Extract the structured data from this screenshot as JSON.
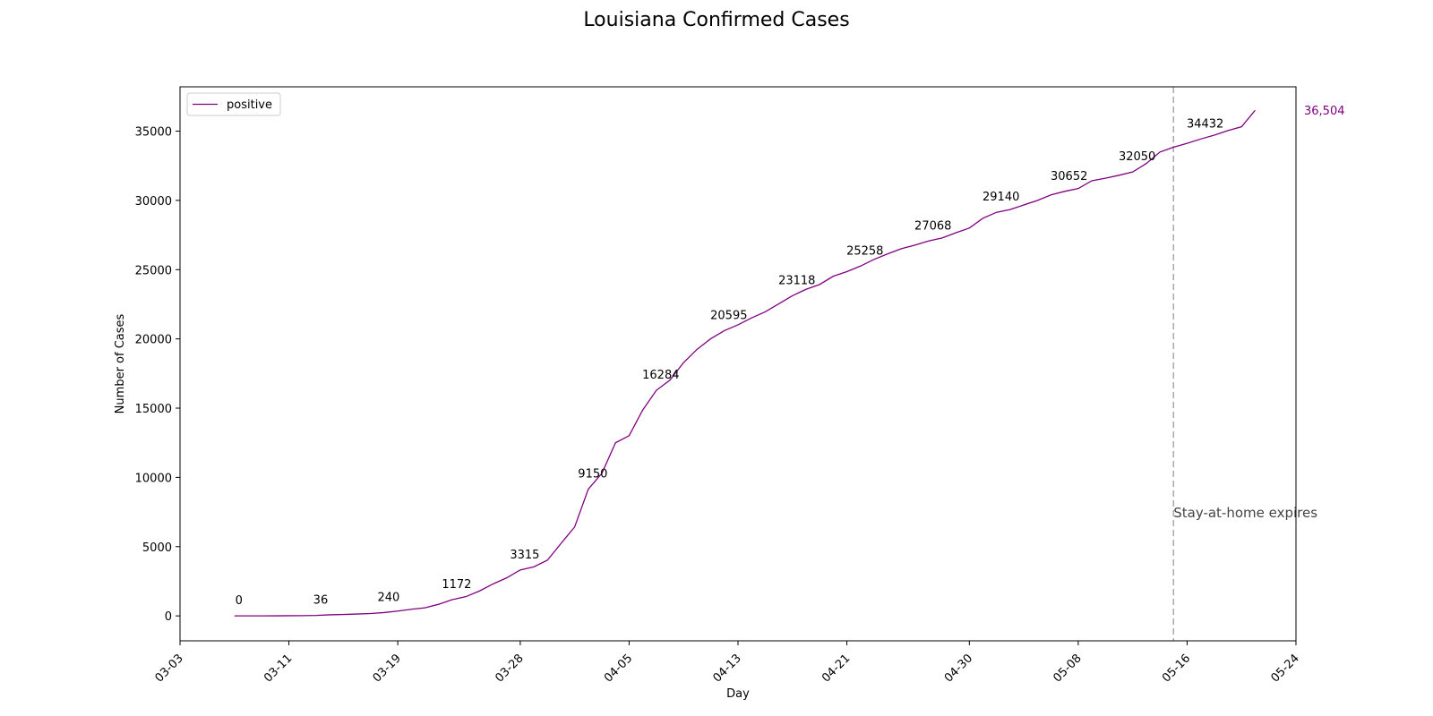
{
  "chart_data": {
    "type": "line",
    "title": "Louisiana Confirmed Cases",
    "xlabel": "Day",
    "ylabel": "Number of Cases",
    "x_ticks": [
      "03-03",
      "03-11",
      "03-19",
      "03-28",
      "04-05",
      "04-13",
      "04-21",
      "04-30",
      "05-08",
      "05-16",
      "05-24"
    ],
    "y_ticks": [
      0,
      5000,
      10000,
      15000,
      20000,
      25000,
      30000,
      35000
    ],
    "xlim": [
      "03-03",
      "05-24"
    ],
    "ylim": [
      -1800,
      38200
    ],
    "grid": false,
    "legend": {
      "position": "top-left",
      "entries": [
        "positive"
      ]
    },
    "series": [
      {
        "name": "positive",
        "color": "#800080",
        "x": [
          "03-07",
          "03-08",
          "03-09",
          "03-10",
          "03-11",
          "03-12",
          "03-13",
          "03-14",
          "03-15",
          "03-16",
          "03-17",
          "03-18",
          "03-19",
          "03-20",
          "03-21",
          "03-22",
          "03-23",
          "03-24",
          "03-25",
          "03-26",
          "03-27",
          "03-28",
          "03-29",
          "03-30",
          "03-31",
          "04-01",
          "04-02",
          "04-03",
          "04-04",
          "04-05",
          "04-06",
          "04-07",
          "04-08",
          "04-09",
          "04-10",
          "04-11",
          "04-12",
          "04-13",
          "04-14",
          "04-15",
          "04-16",
          "04-17",
          "04-18",
          "04-19",
          "04-20",
          "04-21",
          "04-22",
          "04-23",
          "04-24",
          "04-25",
          "04-26",
          "04-27",
          "04-28",
          "04-29",
          "04-30",
          "05-01",
          "05-02",
          "05-03",
          "05-04",
          "05-05",
          "05-06",
          "05-07",
          "05-08",
          "05-09",
          "05-10",
          "05-11",
          "05-12",
          "05-13",
          "05-14",
          "05-15",
          "05-16",
          "05-17",
          "05-18",
          "05-19",
          "05-20",
          "05-21"
        ],
        "values": [
          0,
          0,
          0,
          6,
          13,
          19,
          36,
          77,
          103,
          136,
          171,
          240,
          347,
          479,
          585,
          837,
          1172,
          1388,
          1795,
          2305,
          2746,
          3315,
          3540,
          4025,
          5237,
          6424,
          9150,
          10297,
          12496,
          13010,
          14867,
          16284,
          17030,
          18283,
          19253,
          20014,
          20595,
          21016,
          21518,
          21951,
          22532,
          23118,
          23580,
          23928,
          24523,
          24854,
          25258,
          25739,
          26140,
          26512,
          26773,
          27068,
          27286,
          27660,
          28001,
          28711,
          29140,
          29340,
          29673,
          29996,
          30399,
          30652,
          30855,
          31417,
          31600,
          31815,
          32050,
          32662,
          33489,
          33837,
          34117,
          34432,
          34709,
          35038,
          35316,
          36504
        ]
      }
    ],
    "annotations": [
      {
        "x": "03-07",
        "text": "0"
      },
      {
        "x": "03-13",
        "text": "36"
      },
      {
        "x": "03-18",
        "text": "240"
      },
      {
        "x": "03-23",
        "text": "1172"
      },
      {
        "x": "03-28",
        "text": "3315"
      },
      {
        "x": "04-02",
        "text": "9150"
      },
      {
        "x": "04-07",
        "text": "16284"
      },
      {
        "x": "04-12",
        "text": "20595"
      },
      {
        "x": "04-17",
        "text": "23118"
      },
      {
        "x": "04-22",
        "text": "25258"
      },
      {
        "x": "04-27",
        "text": "27068"
      },
      {
        "x": "05-02",
        "text": "29140"
      },
      {
        "x": "05-07",
        "text": "30652"
      },
      {
        "x": "05-12",
        "text": "32050"
      },
      {
        "x": "05-17",
        "text": "34432"
      }
    ],
    "last_value_label": "36,504",
    "vline": {
      "x": "05-15",
      "label": "Stay-at-home expires",
      "color": "#aaaaaa",
      "style": "dashed"
    }
  }
}
